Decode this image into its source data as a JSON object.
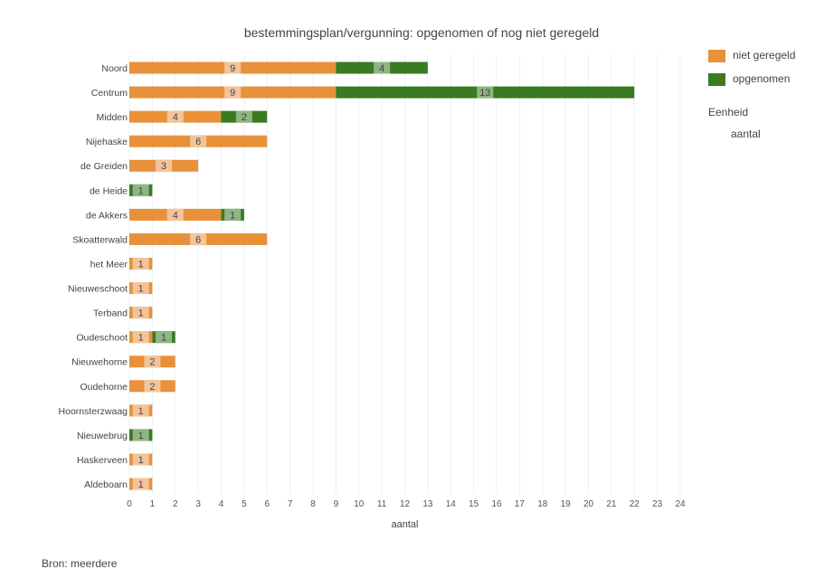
{
  "chart_data": {
    "type": "bar",
    "orientation": "horizontal",
    "stacked": true,
    "title": "bestemmingsplan/vergunning: opgenomen of nog niet geregeld",
    "xlabel": "aantal",
    "xlim": [
      0,
      24
    ],
    "xticks": [
      "0",
      "1",
      "2",
      "3",
      "4",
      "5",
      "6",
      "7",
      "8",
      "9",
      "10",
      "11",
      "12",
      "13",
      "14",
      "15",
      "16",
      "17",
      "18",
      "19",
      "20",
      "21",
      "22",
      "23",
      "24"
    ],
    "grid": true,
    "legend_position": "right",
    "categories": [
      "Noord",
      "Centrum",
      "Midden",
      "Nijehaske",
      "de Greiden",
      "de Heide",
      "de Akkers",
      "Skoatterwald",
      "het Meer",
      "Nieuweschoot",
      "Terband",
      "Oudeschoot",
      "Nieuwehorne",
      "Oudehorne",
      "Hoornsterzwaag",
      "Nieuwebrug",
      "Haskerveen",
      "Aldeboarn"
    ],
    "series": [
      {
        "name": "niet geregeld",
        "color": "#e8913a",
        "label_color": "#f3c49a",
        "values": [
          9,
          9,
          4,
          6,
          3,
          0,
          4,
          6,
          1,
          1,
          1,
          1,
          2,
          2,
          1,
          0,
          1,
          1
        ]
      },
      {
        "name": "opgenomen",
        "color": "#3a7a22",
        "label_color": "#8fb584",
        "values": [
          4,
          13,
          2,
          0,
          0,
          1,
          1,
          0,
          0,
          0,
          0,
          1,
          0,
          0,
          0,
          1,
          0,
          0
        ]
      }
    ]
  },
  "legend": {
    "items": [
      "niet geregeld",
      "opgenomen"
    ],
    "unit_heading": "Eenheid",
    "unit_value": "aantal"
  },
  "source": "Bron: meerdere"
}
